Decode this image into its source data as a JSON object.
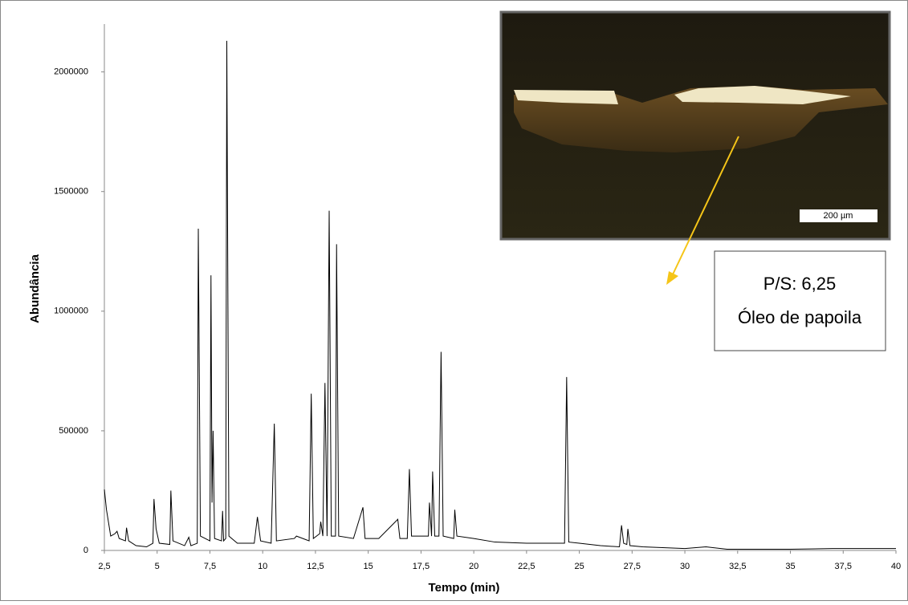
{
  "chart_data": {
    "type": "line",
    "x_label": "Tempo (min)",
    "y_label": "Abundância",
    "x": [
      2.5,
      2.6,
      2.8,
      3.0,
      3.1,
      3.2,
      3.5,
      3.55,
      3.65,
      4.0,
      4.5,
      4.8,
      4.85,
      4.95,
      5.1,
      5.6,
      5.65,
      5.75,
      6.3,
      6.5,
      6.6,
      6.9,
      6.95,
      7.05,
      7.5,
      7.55,
      7.6,
      7.65,
      7.72,
      8.05,
      8.1,
      8.15,
      8.25,
      8.3,
      8.4,
      8.8,
      9.6,
      9.75,
      9.9,
      10.4,
      10.55,
      10.65,
      11.5,
      11.6,
      12.2,
      12.3,
      12.4,
      12.7,
      12.75,
      12.85,
      12.95,
      13.05,
      13.15,
      13.25,
      13.45,
      13.5,
      13.6,
      14.3,
      14.75,
      14.85,
      15.5,
      16.4,
      16.5,
      16.85,
      16.95,
      17.05,
      17.85,
      17.9,
      18.0,
      18.05,
      18.15,
      18.35,
      18.45,
      18.55,
      19.05,
      19.1,
      19.2,
      20,
      21,
      22.5,
      24.3,
      24.4,
      24.5,
      25,
      26,
      26.9,
      27,
      27.1,
      27.25,
      27.3,
      27.4,
      28,
      30,
      31,
      32,
      35,
      37,
      40
    ],
    "values": [
      255000,
      170000,
      60000,
      70000,
      80000,
      50000,
      40000,
      95000,
      40000,
      20000,
      15000,
      30000,
      215000,
      90000,
      30000,
      25000,
      250000,
      40000,
      20000,
      55000,
      20000,
      30000,
      1345000,
      60000,
      40000,
      1150000,
      200000,
      500000,
      50000,
      40000,
      165000,
      40000,
      50000,
      2130000,
      60000,
      30000,
      30000,
      140000,
      40000,
      30000,
      530000,
      40000,
      50000,
      60000,
      40000,
      655000,
      50000,
      70000,
      120000,
      60000,
      700000,
      60000,
      1420000,
      60000,
      60000,
      1280000,
      60000,
      50000,
      180000,
      50000,
      50000,
      130000,
      50000,
      50000,
      340000,
      60000,
      60000,
      200000,
      60000,
      330000,
      60000,
      60000,
      830000,
      60000,
      50000,
      170000,
      60000,
      50000,
      35000,
      30000,
      30000,
      725000,
      35000,
      30000,
      20000,
      15000,
      105000,
      30000,
      25000,
      90000,
      20000,
      15000,
      8000,
      15000,
      5000,
      5000,
      8000,
      8000
    ],
    "color": "#000000",
    "xlim": [
      2.5,
      40
    ],
    "xticks": [
      {
        "value": 2.5,
        "label": "2,5"
      },
      5,
      {
        "value": 7.5,
        "label": "7,5"
      },
      10,
      {
        "value": 12.5,
        "label": "12,5"
      },
      15,
      {
        "value": 17.5,
        "label": "17,5"
      },
      20,
      {
        "value": 22.5,
        "label": "22,5"
      },
      25,
      {
        "value": 27.5,
        "label": "27,5"
      },
      30,
      {
        "value": 32.5,
        "label": "32,5"
      },
      35,
      {
        "value": 37.5,
        "label": "37,5"
      },
      40
    ],
    "ylim": [
      0,
      2200000
    ],
    "yticks": [
      0,
      500000,
      1000000,
      1500000,
      2000000
    ],
    "annotations": {
      "scale_bar": "200 µm",
      "ratio": "P/S: 6,25",
      "sample": "Óleo de papoila"
    }
  }
}
